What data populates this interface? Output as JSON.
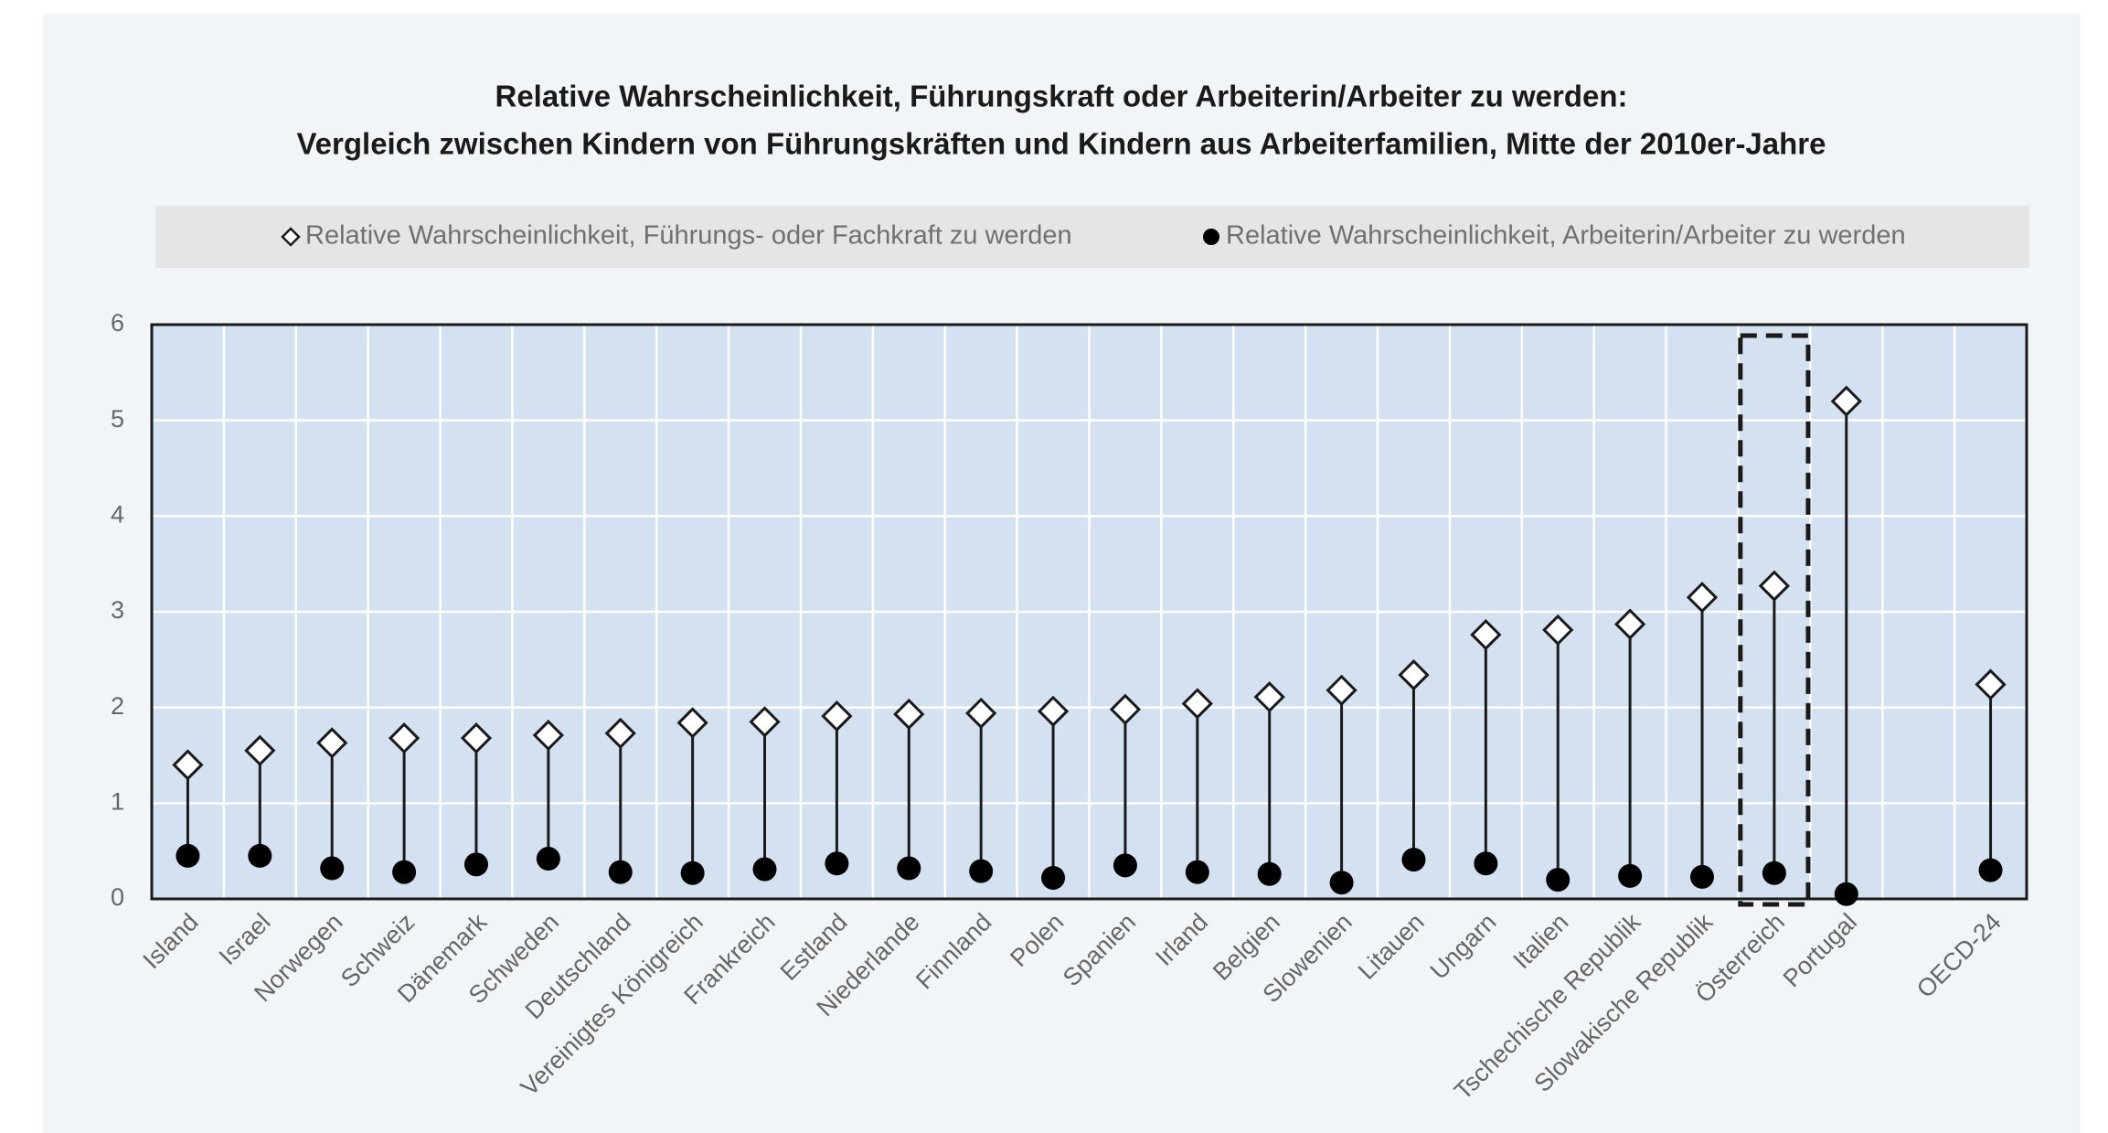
{
  "chart_data": {
    "type": "lollipop",
    "title": "Relative Wahrscheinlichkeit, Führungskraft oder Arbeiterin/Arbeiter zu werden:",
    "subtitle": "Vergleich zwischen Kindern von Führungskräften und Kindern aus Arbeiterfamilien, Mitte der 2010er-Jahre",
    "categories": [
      "Island",
      "Israel",
      "Norwegen",
      "Schweiz",
      "Dänemark",
      "Schweden",
      "Deutschland",
      "Vereinigtes Königreich",
      "Frankreich",
      "Estland",
      "Niederlande",
      "Finnland",
      "Polen",
      "Spanien",
      "Irland",
      "Belgien",
      "Slowenien",
      "Litauen",
      "Ungarn",
      "Italien",
      "Tschechische Republik",
      "Slowakische Republik",
      "Österreich",
      "Portugal",
      null,
      "OECD-24"
    ],
    "series": [
      {
        "name": "Relative Wahrscheinlichkeit, Führungs- oder Fachkraft zu werden",
        "marker": "diamond",
        "color": "#ffffff",
        "values": [
          1.4,
          1.55,
          1.63,
          1.68,
          1.68,
          1.71,
          1.73,
          1.84,
          1.85,
          1.91,
          1.93,
          1.94,
          1.96,
          1.98,
          2.04,
          2.11,
          2.18,
          2.34,
          2.76,
          2.81,
          2.87,
          3.15,
          3.27,
          5.2,
          null,
          2.24
        ]
      },
      {
        "name": "Relative Wahrscheinlichkeit, Arbeiterin/Arbeiter zu werden",
        "marker": "circle",
        "color": "#000000",
        "values": [
          0.45,
          0.45,
          0.32,
          0.28,
          0.36,
          0.42,
          0.28,
          0.27,
          0.31,
          0.37,
          0.32,
          0.29,
          0.22,
          0.35,
          0.28,
          0.26,
          0.17,
          0.41,
          0.37,
          0.2,
          0.24,
          0.23,
          0.27,
          0.05,
          null,
          0.3
        ]
      }
    ],
    "highlight": "Österreich",
    "ylim": [
      0,
      6
    ],
    "yticks": [
      0,
      1,
      2,
      3,
      4,
      5,
      6
    ],
    "grid": true,
    "legend": "top"
  }
}
